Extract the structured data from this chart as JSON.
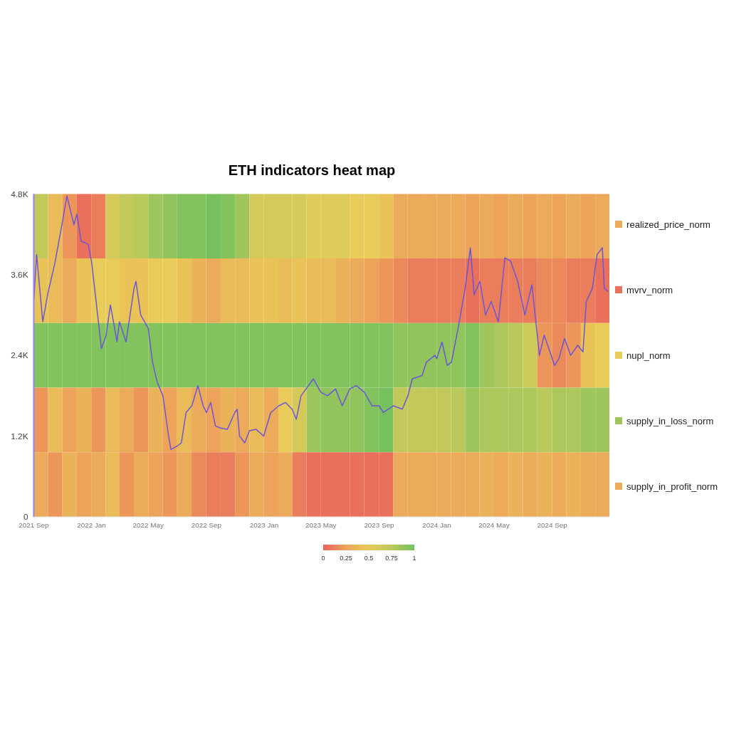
{
  "chart_data": {
    "type": "heatmap",
    "title": "ETH indicators heat map",
    "x": [
      "2021-09-16",
      "2021-10-16",
      "2021-11-16",
      "2021-12-16",
      "2022-01-16",
      "2022-02-15",
      "2022-03-16",
      "2022-04-16",
      "2022-05-16",
      "2022-06-16",
      "2022-07-16",
      "2022-08-16",
      "2022-09-16",
      "2022-10-16",
      "2022-11-16",
      "2022-12-16",
      "2023-01-16",
      "2023-02-15",
      "2023-03-16",
      "2023-04-16",
      "2023-05-16",
      "2023-06-16",
      "2023-07-16",
      "2023-08-16",
      "2023-09-16",
      "2023-10-16",
      "2023-11-16",
      "2023-12-16",
      "2024-01-16",
      "2024-02-15",
      "2024-03-16",
      "2024-04-16",
      "2024-05-16",
      "2024-06-16",
      "2024-07-16",
      "2024-08-16",
      "2024-09-16",
      "2024-10-16",
      "2024-11-16",
      "2024-12-16"
    ],
    "y_categories": [
      "realized_price_norm",
      "mvrv_norm",
      "nupl_norm",
      "supply_in_loss_norm",
      "supply_in_profit_norm"
    ],
    "cells": [
      [
        0.7,
        0.4,
        0.2,
        0.05,
        0.1,
        0.6,
        0.7,
        0.75,
        0.85,
        0.9,
        0.95,
        0.95,
        1,
        0.95,
        0.85,
        0.6,
        0.6,
        0.6,
        0.6,
        0.55,
        0.55,
        0.55,
        0.5,
        0.5,
        0.45,
        0.3,
        0.3,
        0.3,
        0.3,
        0.3,
        0.25,
        0.3,
        0.25,
        0.3,
        0.25,
        0.3,
        0.25,
        0.3,
        0.25,
        0.3
      ],
      [
        0.45,
        0.4,
        0.3,
        0.45,
        0.5,
        0.5,
        0.45,
        0.45,
        0.5,
        0.5,
        0.45,
        0.35,
        0.3,
        0.4,
        0.4,
        0.45,
        0.45,
        0.4,
        0.45,
        0.4,
        0.4,
        0.35,
        0.3,
        0.25,
        0.2,
        0.15,
        0.1,
        0.1,
        0.1,
        0.1,
        0.05,
        0.1,
        0.1,
        0.1,
        0.1,
        0.15,
        0.15,
        0.1,
        0.1,
        0.05
      ],
      [
        0.95,
        0.95,
        0.95,
        0.95,
        0.95,
        0.95,
        0.95,
        0.95,
        0.95,
        0.95,
        0.95,
        0.95,
        0.95,
        0.95,
        0.95,
        0.95,
        0.95,
        0.95,
        0.95,
        0.95,
        0.95,
        0.95,
        0.95,
        0.95,
        0.95,
        0.9,
        0.9,
        0.9,
        0.9,
        0.9,
        0.95,
        0.85,
        0.8,
        0.75,
        0.65,
        0.2,
        0.15,
        0.2,
        0.45,
        0.5
      ],
      [
        0.2,
        0.4,
        0.25,
        0.35,
        0.2,
        0.4,
        0.3,
        0.2,
        0.35,
        0.25,
        0.4,
        0.3,
        0.25,
        0.35,
        0.3,
        0.4,
        0.3,
        0.5,
        0.6,
        0.85,
        0.9,
        0.9,
        0.9,
        0.95,
        1,
        0.7,
        0.7,
        0.7,
        0.7,
        0.75,
        0.85,
        0.8,
        0.8,
        0.8,
        0.8,
        0.75,
        0.8,
        0.8,
        0.85,
        0.85
      ],
      [
        0.3,
        0.2,
        0.35,
        0.25,
        0.3,
        0.4,
        0.2,
        0.3,
        0.25,
        0.2,
        0.3,
        0.15,
        0.1,
        0.1,
        0.2,
        0.3,
        0.25,
        0.3,
        0.1,
        0.05,
        0.05,
        0.05,
        0.05,
        0.05,
        0.05,
        0.3,
        0.3,
        0.3,
        0.3,
        0.3,
        0.3,
        0.35,
        0.3,
        0.35,
        0.3,
        0.35,
        0.3,
        0.35,
        0.3,
        0.3
      ]
    ],
    "clim": [
      0,
      1
    ],
    "cticks": [
      0,
      0.25,
      0.5,
      0.75,
      1
    ],
    "xlim": [
      "2021-09-01",
      "2024-12-31"
    ],
    "xticks": [
      {
        "value": "2021-09-01",
        "label": "2021 Sep"
      },
      {
        "value": "2022-01-01",
        "label": "2022 Jan"
      },
      {
        "value": "2022-05-01",
        "label": "2022 May"
      },
      {
        "value": "2022-09-01",
        "label": "2022 Sep"
      },
      {
        "value": "2023-01-01",
        "label": "2023 Jan"
      },
      {
        "value": "2023-05-01",
        "label": "2023 May"
      },
      {
        "value": "2023-09-01",
        "label": "2023 Sep"
      },
      {
        "value": "2024-01-01",
        "label": "2024 Jan"
      },
      {
        "value": "2024-05-01",
        "label": "2024 May"
      },
      {
        "value": "2024-09-01",
        "label": "2024 Sep"
      }
    ],
    "y2lim": [
      0,
      4800
    ],
    "y2ticks": [
      0,
      {
        "value": 1200,
        "label": "1.2K"
      },
      {
        "value": 2400,
        "label": "2.4K"
      },
      {
        "value": 3600,
        "label": "3.6K"
      },
      {
        "value": 4800,
        "label": "4.8K"
      }
    ],
    "series": [
      {
        "type": "line",
        "axis": "y2",
        "color": "#6b55d6",
        "x": [
          "2021-09-01",
          "2021-09-07",
          "2021-09-20",
          "2021-10-01",
          "2021-10-15",
          "2021-11-01",
          "2021-11-10",
          "2021-11-25",
          "2021-12-01",
          "2021-12-10",
          "2021-12-25",
          "2022-01-01",
          "2022-01-10",
          "2022-01-22",
          "2022-02-01",
          "2022-02-10",
          "2022-02-24",
          "2022-03-01",
          "2022-03-15",
          "2022-04-01",
          "2022-04-05",
          "2022-04-15",
          "2022-05-01",
          "2022-05-10",
          "2022-05-20",
          "2022-06-01",
          "2022-06-13",
          "2022-06-18",
          "2022-07-01",
          "2022-07-10",
          "2022-07-20",
          "2022-08-01",
          "2022-08-14",
          "2022-08-25",
          "2022-09-01",
          "2022-09-10",
          "2022-09-20",
          "2022-10-01",
          "2022-10-15",
          "2022-10-31",
          "2022-11-05",
          "2022-11-10",
          "2022-11-21",
          "2022-12-01",
          "2022-12-15",
          "2022-12-31",
          "2023-01-15",
          "2023-02-01",
          "2023-02-15",
          "2023-03-01",
          "2023-03-10",
          "2023-03-20",
          "2023-04-15",
          "2023-05-01",
          "2023-05-15",
          "2023-06-01",
          "2023-06-15",
          "2023-07-01",
          "2023-07-15",
          "2023-08-01",
          "2023-08-17",
          "2023-09-01",
          "2023-09-10",
          "2023-10-01",
          "2023-10-20",
          "2023-11-01",
          "2023-11-10",
          "2023-12-01",
          "2023-12-10",
          "2023-12-28",
          "2024-01-01",
          "2024-01-12",
          "2024-01-23",
          "2024-02-01",
          "2024-02-15",
          "2024-03-01",
          "2024-03-12",
          "2024-03-20",
          "2024-04-01",
          "2024-04-13",
          "2024-04-25",
          "2024-05-10",
          "2024-05-24",
          "2024-06-05",
          "2024-06-20",
          "2024-07-05",
          "2024-07-20",
          "2024-08-05",
          "2024-08-15",
          "2024-09-06",
          "2024-09-15",
          "2024-09-27",
          "2024-10-10",
          "2024-10-25",
          "2024-11-05",
          "2024-11-12",
          "2024-11-25",
          "2024-12-05",
          "2024-12-16",
          "2024-12-20",
          "2024-12-28"
        ],
        "values": [
          3220,
          3900,
          2900,
          3330,
          3750,
          4400,
          4770,
          4340,
          4500,
          4100,
          4050,
          3800,
          3250,
          2500,
          2700,
          3150,
          2600,
          2900,
          2600,
          3400,
          3500,
          3000,
          2800,
          2300,
          2000,
          1800,
          1200,
          1000,
          1050,
          1100,
          1550,
          1650,
          1950,
          1650,
          1550,
          1700,
          1350,
          1320,
          1300,
          1550,
          1600,
          1200,
          1100,
          1280,
          1300,
          1200,
          1550,
          1650,
          1700,
          1600,
          1450,
          1800,
          2050,
          1850,
          1800,
          1900,
          1650,
          1900,
          1950,
          1850,
          1650,
          1650,
          1550,
          1650,
          1600,
          1800,
          2050,
          2100,
          2300,
          2400,
          2350,
          2600,
          2250,
          2300,
          2800,
          3400,
          4000,
          3300,
          3500,
          3000,
          3200,
          2900,
          3850,
          3800,
          3500,
          3000,
          3450,
          2400,
          2700,
          2250,
          2350,
          2650,
          2400,
          2550,
          2450,
          3200,
          3400,
          3900,
          4000,
          3400,
          3350
        ]
      }
    ]
  }
}
